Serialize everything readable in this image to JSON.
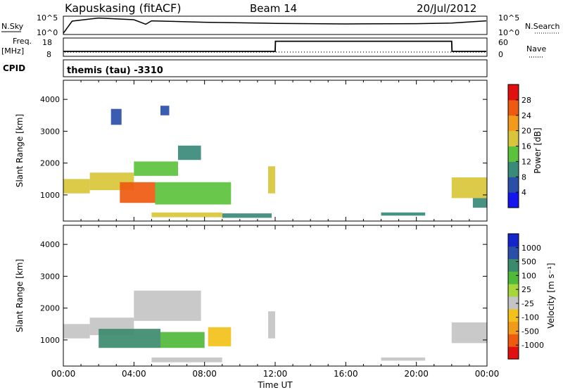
{
  "header": {
    "station": "Kapuskasing (fitACF)",
    "beam": "Beam 14",
    "date": "20/Jul/2012"
  },
  "labels": {
    "nsky": "N.Sky",
    "nsearch": "N.Search",
    "freq": "Freq.",
    "freq_unit": "[MHz]",
    "nave": "Nave",
    "cpid": "CPID",
    "cpid_value": "themis (tau) -3310",
    "xlabel": "Time UT",
    "ylabel": "Slant Range [km]",
    "power_label": "Power [dB]",
    "velocity_label": "Velocity [m s⁻¹]",
    "noise_ticks_left": [
      "10^5",
      "10^0"
    ],
    "noise_ticks_right": [
      "10^5",
      "10^0"
    ],
    "freq_ticks": [
      "18",
      "8"
    ],
    "nave_ticks": [
      "60",
      "0"
    ]
  },
  "colors": {
    "power": [
      "#1515ee",
      "#2a4fa8",
      "#3a8a7a",
      "#5cc23c",
      "#d9c53a",
      "#f29a1a",
      "#ee5a10",
      "#e01010"
    ],
    "velocity": [
      "#e01010",
      "#ee5a10",
      "#f29a1a",
      "#f2c21a",
      "#c4c4c4",
      "#a6d63a",
      "#4fba3a",
      "#3c8a6e",
      "#2a4fa8",
      "#1525cc"
    ]
  },
  "chart_data": [
    {
      "type": "line",
      "title": "N.Sky / N.Search",
      "x": [
        "00:00",
        "00:30",
        "02:00",
        "04:00",
        "04:40",
        "05:00",
        "08:00",
        "12:00",
        "16:00",
        "20:00",
        "22:00",
        "24:00"
      ],
      "series": [
        {
          "name": "N.Sky",
          "values": [
            0.2,
            4.5,
            5.6,
            5.0,
            3.4,
            4.6,
            4.1,
            3.7,
            3.5,
            3.6,
            3.8,
            4.6
          ]
        }
      ],
      "ylim": [
        0,
        6
      ]
    },
    {
      "type": "line",
      "title": "Freq. / Nave",
      "x": [
        "00:00",
        "12:00",
        "12:01",
        "22:00",
        "22:01",
        "24:00"
      ],
      "series": [
        {
          "name": "Freq.",
          "values": [
            10.5,
            10.5,
            16.5,
            16.5,
            10.5,
            10.5
          ]
        }
      ],
      "ylim": [
        8,
        18
      ]
    },
    {
      "type": "heatmap",
      "title": "Power",
      "xlabel": "Time UT",
      "ylabel": "Slant Range [km]",
      "xticks": [
        "00:00",
        "04:00",
        "08:00",
        "12:00",
        "16:00",
        "20:00",
        "00:00"
      ],
      "yticks": [
        1000,
        2000,
        3000,
        4000
      ],
      "xlim": [
        0,
        24
      ],
      "ylim": [
        180,
        4600
      ],
      "colorbar": {
        "label": "Power [dB]",
        "ticks": [
          4,
          8,
          12,
          16,
          20,
          24,
          28
        ],
        "range": [
          0,
          32
        ]
      },
      "regions": [
        {
          "t0": 0.0,
          "t1": 1.5,
          "r0": 1050,
          "r1": 1500,
          "value": 18
        },
        {
          "t0": 1.5,
          "t1": 4.0,
          "r0": 1150,
          "r1": 1700,
          "value": 16
        },
        {
          "t0": 4.0,
          "t1": 6.5,
          "r0": 1600,
          "r1": 2050,
          "value": 14
        },
        {
          "t0": 6.5,
          "t1": 7.8,
          "r0": 2100,
          "r1": 2550,
          "value": 8
        },
        {
          "t0": 3.2,
          "t1": 5.2,
          "r0": 750,
          "r1": 1400,
          "value": 24
        },
        {
          "t0": 5.2,
          "t1": 9.5,
          "r0": 700,
          "r1": 1400,
          "value": 12
        },
        {
          "t0": 5.0,
          "t1": 9.0,
          "r0": 300,
          "r1": 450,
          "value": 18
        },
        {
          "t0": 9.0,
          "t1": 11.8,
          "r0": 280,
          "r1": 420,
          "value": 10
        },
        {
          "t0": 11.6,
          "t1": 12.0,
          "r0": 1050,
          "r1": 1900,
          "value": 16
        },
        {
          "t0": 22.0,
          "t1": 24.0,
          "r0": 900,
          "r1": 1550,
          "value": 16
        },
        {
          "t0": 23.2,
          "t1": 24.0,
          "r0": 600,
          "r1": 900,
          "value": 8
        },
        {
          "t0": 18.0,
          "t1": 20.5,
          "r0": 350,
          "r1": 450,
          "value": 8
        },
        {
          "t0": 2.7,
          "t1": 3.3,
          "r0": 3200,
          "r1": 3700,
          "value": 6
        },
        {
          "t0": 5.5,
          "t1": 6.0,
          "r0": 3500,
          "r1": 3800,
          "value": 4
        }
      ]
    },
    {
      "type": "heatmap",
      "title": "Velocity",
      "xlabel": "Time UT",
      "ylabel": "Slant Range [km]",
      "xticks": [
        "00:00",
        "04:00",
        "08:00",
        "12:00",
        "16:00",
        "20:00",
        "00:00"
      ],
      "yticks": [
        1000,
        2000,
        3000,
        4000
      ],
      "xlim": [
        0,
        24
      ],
      "ylim": [
        180,
        4600
      ],
      "colorbar": {
        "label": "Velocity [m s⁻¹]",
        "ticks": [
          1000,
          500,
          100,
          25,
          -25,
          -100,
          -500,
          -1000
        ]
      },
      "regions": [
        {
          "t0": 0.0,
          "t1": 1.5,
          "r0": 1050,
          "r1": 1500,
          "value": 0
        },
        {
          "t0": 1.5,
          "t1": 4.0,
          "r0": 1150,
          "r1": 1700,
          "value": 0
        },
        {
          "t0": 4.0,
          "t1": 7.8,
          "r0": 1600,
          "r1": 2550,
          "value": 0
        },
        {
          "t0": 2.0,
          "t1": 5.5,
          "r0": 750,
          "r1": 1350,
          "value": 120
        },
        {
          "t0": 5.5,
          "t1": 8.0,
          "r0": 750,
          "r1": 1250,
          "value": 60
        },
        {
          "t0": 8.2,
          "t1": 9.5,
          "r0": 800,
          "r1": 1400,
          "value": -300
        },
        {
          "t0": 5.0,
          "t1": 9.0,
          "r0": 300,
          "r1": 450,
          "value": 0
        },
        {
          "t0": 11.6,
          "t1": 12.0,
          "r0": 1050,
          "r1": 1900,
          "value": 0
        },
        {
          "t0": 22.0,
          "t1": 24.0,
          "r0": 900,
          "r1": 1550,
          "value": 0
        },
        {
          "t0": 18.0,
          "t1": 20.5,
          "r0": 350,
          "r1": 450,
          "value": 0
        }
      ]
    }
  ]
}
